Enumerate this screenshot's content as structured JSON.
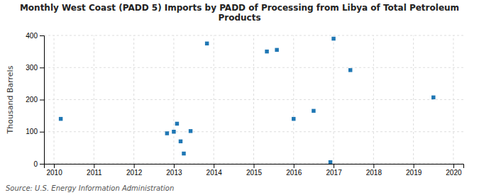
{
  "chart_data": {
    "type": "scatter",
    "title": "Monthly West Coast (PADD 5) Imports by PADD of Processing from Libya of Total Petroleum\nProducts",
    "ylabel": "Thousand Barrels",
    "annotations": [
      "Source: U.S. Energy Information Administration"
    ],
    "x": [
      2010.17,
      2012.83,
      2013.0,
      2013.08,
      2013.17,
      2013.25,
      2013.42,
      2013.83,
      2015.33,
      2015.58,
      2016.0,
      2016.5,
      2016.92,
      2017.0,
      2017.42,
      2019.5
    ],
    "values": [
      140,
      95,
      100,
      125,
      70,
      32,
      102,
      375,
      350,
      355,
      140,
      165,
      5,
      390,
      292,
      207
    ],
    "marker": "square",
    "xlim": [
      2009.75,
      2020.25
    ],
    "xticks": [
      2010,
      2011,
      2012,
      2013,
      2014,
      2015,
      2016,
      2017,
      2018,
      2019,
      2020
    ],
    "ylim": [
      0,
      400
    ],
    "yticks": [
      0,
      100,
      200,
      300,
      400
    ],
    "grid": true
  }
}
